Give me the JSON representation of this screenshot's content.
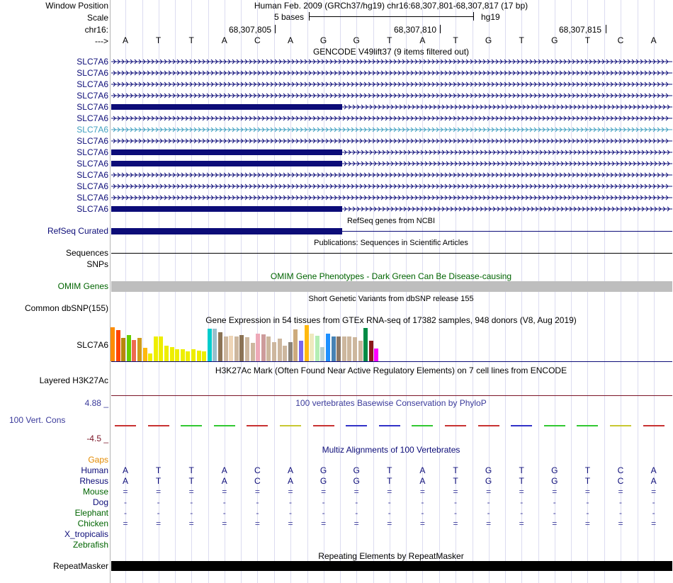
{
  "header": {
    "window_position_label": "Window Position",
    "window_position_text": "Human Feb. 2009 (GRCh37/hg19)   chr16:68,307,801-68,307,817 (17 bp)",
    "scale_label": "Scale",
    "scale_text": "5 bases",
    "scale_assembly": "hg19",
    "chrom_label": "chr16:",
    "coord_1": "68,307,805",
    "coord_2": "68,307,810",
    "coord_3": "68,307,815",
    "strand_label": "--->",
    "bases": [
      "A",
      "T",
      "T",
      "A",
      "C",
      "A",
      "G",
      "G",
      "T",
      "A",
      "T",
      "G",
      "T",
      "G",
      "T",
      "C",
      "A"
    ]
  },
  "gencode": {
    "title": "GENCODE V49lift37 (9 items filtered out)",
    "rows": [
      {
        "label": "SLC7A6",
        "style": "navy",
        "coding": false
      },
      {
        "label": "SLC7A6",
        "style": "navy",
        "coding": false
      },
      {
        "label": "SLC7A6",
        "style": "navy",
        "coding": false
      },
      {
        "label": "SLC7A6",
        "style": "navy",
        "coding": false
      },
      {
        "label": "SLC7A6",
        "style": "navy",
        "coding": true
      },
      {
        "label": "SLC7A6",
        "style": "navy",
        "coding": false
      },
      {
        "label": "SLC7A6",
        "style": "teal",
        "coding": false
      },
      {
        "label": "SLC7A6",
        "style": "navy",
        "coding": false
      },
      {
        "label": "SLC7A6",
        "style": "navy",
        "coding": true
      },
      {
        "label": "SLC7A6",
        "style": "navy",
        "coding": true
      },
      {
        "label": "SLC7A6",
        "style": "navy",
        "coding": false
      },
      {
        "label": "SLC7A6",
        "style": "navy",
        "coding": false
      },
      {
        "label": "SLC7A6",
        "style": "navy",
        "coding": false
      },
      {
        "label": "SLC7A6",
        "style": "navy",
        "coding": true
      }
    ]
  },
  "refseq": {
    "title": "RefSeq genes from NCBI",
    "label": "RefSeq Curated"
  },
  "publications": {
    "title": "Publications: Sequences in Scientific Articles",
    "label": "Sequences"
  },
  "snps": {
    "label": "SNPs"
  },
  "omim": {
    "title": "OMIM Gene Phenotypes - Dark Green Can Be Disease-causing",
    "label": "OMIM Genes"
  },
  "dbsnp": {
    "title": "Short Genetic Variants from dbSNP release 155",
    "label": "Common dbSNP(155)"
  },
  "gtex": {
    "title": "Gene Expression in 54 tissues from GTEx RNA-seq of 17382 samples, 948 donors (V8, Aug 2019)",
    "label": "SLC7A6",
    "levels": [
      1.0,
      0.92,
      0.68,
      0.78,
      0.62,
      0.68,
      0.4,
      0.22,
      0.72,
      0.72,
      0.45,
      0.42,
      0.35,
      0.36,
      0.3,
      0.36,
      0.32,
      0.3,
      0.96,
      0.96,
      0.86,
      0.72,
      0.74,
      0.72,
      0.78,
      0.7,
      0.55,
      0.82,
      0.8,
      0.72,
      0.56,
      0.66,
      0.46,
      0.56,
      0.94,
      0.6,
      1.07,
      0.82,
      0.74,
      0.42,
      0.82,
      0.72,
      0.72,
      0.72,
      0.72,
      0.7,
      0.6,
      0.98,
      0.6,
      0.38
    ],
    "colors": [
      "#ff8c00",
      "#ff4500",
      "#b8860b",
      "#66cd00",
      "#ee6a50",
      "#cd9b1d",
      "#ffb90f",
      "#eeee00",
      "#eeee00",
      "#eeee00",
      "#eeee00",
      "#eeee00",
      "#eeee00",
      "#eeee00",
      "#eeee00",
      "#eeee00",
      "#eeee00",
      "#eeee00",
      "#00cdcd",
      "#9ac0cd",
      "#8b7355",
      "#cdb79e",
      "#eed5b7",
      "#cdb79e",
      "#8b7355",
      "#cdb79e",
      "#cdb79e",
      "#eea9b8",
      "#cd9b9b",
      "#cdb79e",
      "#cdb79e",
      "#cdb79e",
      "#cdb79e",
      "#8b8378",
      "#cdaa7d",
      "#7a67ee",
      "#ffb90f",
      "#eee9bf",
      "#b4eeb4",
      "#b4cdcd",
      "#1e90ff",
      "#4682b4",
      "#8b7765",
      "#cdb79e",
      "#cdb79e",
      "#cdb79e",
      "#cdb79e",
      "#008b45",
      "#8b1a1a",
      "#ff00ff"
    ]
  },
  "h3k27ac": {
    "title": "H3K27Ac Mark (Often Found Near Active Regulatory Elements) on 7 cell lines from ENCODE",
    "label": "Layered H3K27Ac"
  },
  "phylop": {
    "title": "100 vertebrates Basewise Conservation by PhyloP",
    "label": "100 Vert. Cons",
    "max_label": "4.88 _",
    "min_label": "-4.5 _"
  },
  "multiz": {
    "title": "Multiz Alignments of 100 Vertebrates",
    "gaps_label": "Gaps",
    "species": [
      {
        "label": "Human",
        "style": "navy",
        "row": [
          "A",
          "T",
          "T",
          "A",
          "C",
          "A",
          "G",
          "G",
          "T",
          "A",
          "T",
          "G",
          "T",
          "G",
          "T",
          "C",
          "A"
        ]
      },
      {
        "label": "Rhesus",
        "style": "navy",
        "row": [
          "A",
          "T",
          "T",
          "A",
          "C",
          "A",
          "G",
          "G",
          "T",
          "A",
          "T",
          "G",
          "T",
          "G",
          "T",
          "C",
          "A"
        ]
      },
      {
        "label": "Mouse",
        "style": "green",
        "row": [
          "=",
          "=",
          "=",
          "=",
          "=",
          "=",
          "=",
          "=",
          "=",
          "=",
          "=",
          "=",
          "=",
          "=",
          "=",
          "=",
          "="
        ]
      },
      {
        "label": "Dog",
        "style": "navy",
        "row": [
          "-",
          "-",
          "-",
          "-",
          "-",
          "-",
          "-",
          "-",
          "-",
          "-",
          "-",
          "-",
          "-",
          "-",
          "-",
          "-",
          "-"
        ]
      },
      {
        "label": "Elephant",
        "style": "green",
        "row": [
          "-",
          "-",
          "-",
          "-",
          "-",
          "-",
          "-",
          "-",
          "-",
          "-",
          "-",
          "-",
          "-",
          "-",
          "-",
          "-",
          "-"
        ]
      },
      {
        "label": "Chicken",
        "style": "green",
        "row": [
          "=",
          "=",
          "=",
          "=",
          "=",
          "=",
          "=",
          "=",
          "=",
          "=",
          "=",
          "=",
          "=",
          "=",
          "=",
          "=",
          "="
        ]
      },
      {
        "label": "X_tropicalis",
        "style": "navy",
        "row": []
      },
      {
        "label": "Zebrafish",
        "style": "green",
        "row": []
      }
    ]
  },
  "repeatmasker": {
    "title": "Repeating Elements by RepeatMasker",
    "label": "RepeatMasker"
  }
}
